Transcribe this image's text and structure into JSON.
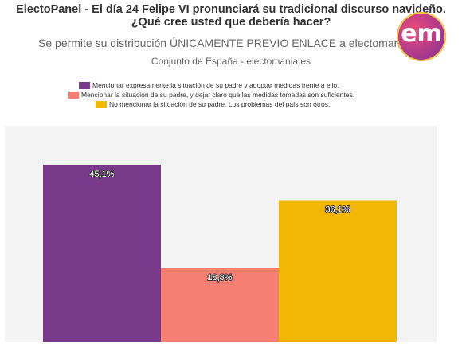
{
  "header": {
    "title_line1": "ElectoPanel - El día 24 Felipe VI pronunciará su tradicional discurso navideño.",
    "title_line2": "¿Qué cree usted que debería hacer?",
    "subtitle": "Se permite su distribución ÚNICAMENTE PREVIO ENLACE a electomania.es",
    "scope": "Conjunto de España - electomania.es",
    "logo_text": "em"
  },
  "chart_data": {
    "type": "bar",
    "title": "ElectoPanel - El día 24 Felipe VI pronunciará su tradicional discurso navideño. ¿Qué cree usted que debería hacer?",
    "legend_position": "top",
    "grid": false,
    "ylim": [
      0,
      55
    ],
    "series": [
      {
        "name": "Mencionar expresamente la situación de su padre y adoptar medidas frente a ello.",
        "value": 45.1,
        "label": "45,1%",
        "color": "#7a3a8c"
      },
      {
        "name": "Mencionar la situación de su padre, y dejar claro que las medidas tomadas son suficientes.",
        "value": 18.8,
        "label": "18,8%",
        "color": "#f47f72"
      },
      {
        "name": "No mencionar la situación de su padre. Los problemas del país son otros.",
        "value": 36.1,
        "label": "36,1%",
        "color": "#f2b705"
      }
    ]
  },
  "colors": {
    "plot_background": "#f3f3f3",
    "title": "#333333",
    "subtitle": "#666666"
  }
}
